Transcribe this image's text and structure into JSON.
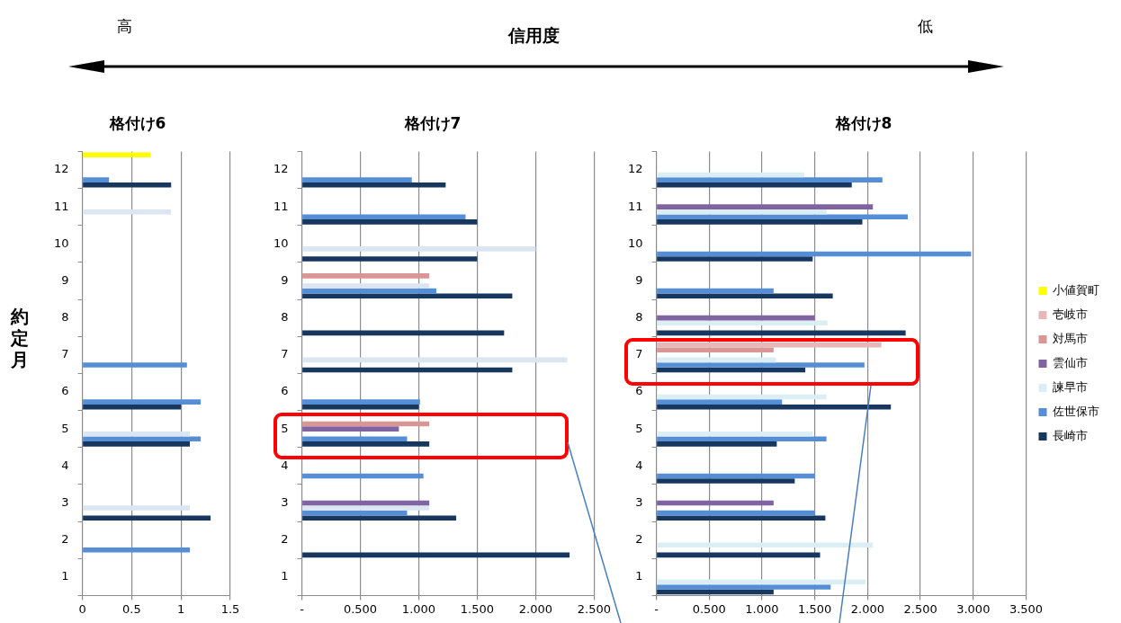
{
  "chart_data": [
    {
      "type": "other",
      "title": "信用度",
      "annotations": [
        "高",
        "低"
      ]
    },
    {
      "type": "bar",
      "title": "格付け6",
      "ylabel": "約定月",
      "orientation": "horizontal",
      "grid": "x",
      "categories": [
        "12",
        "11",
        "10",
        "9",
        "8",
        "7",
        "6",
        "5",
        "4",
        "3",
        "2",
        "1"
      ],
      "xlim": [
        0,
        1.5
      ],
      "xticks": [
        0,
        0.5,
        1,
        1.5
      ],
      "series": [
        {
          "color": "#ffff00",
          "values": [
            0.69,
            null,
            null,
            null,
            null,
            null,
            null,
            null,
            null,
            null,
            null,
            null
          ]
        },
        {
          "color": "#e6b9b8",
          "values": [
            null,
            null,
            null,
            null,
            null,
            null,
            null,
            null,
            null,
            null,
            null,
            null
          ]
        },
        {
          "color": "#d99694",
          "values": [
            null,
            null,
            null,
            null,
            null,
            null,
            null,
            null,
            null,
            null,
            null,
            null
          ]
        },
        {
          "color": "#8064a2",
          "values": [
            null,
            null,
            null,
            null,
            null,
            null,
            null,
            null,
            null,
            null,
            null,
            null
          ]
        },
        {
          "color": "#dce6f2",
          "values": [
            null,
            0.9,
            null,
            null,
            null,
            null,
            null,
            1.09,
            null,
            1.09,
            null,
            null
          ]
        },
        {
          "color": "#558ed5",
          "values": [
            0.27,
            null,
            null,
            null,
            null,
            1.06,
            1.2,
            1.2,
            null,
            null,
            1.09,
            null
          ]
        },
        {
          "color": "#17375e",
          "values": [
            0.9,
            null,
            null,
            null,
            null,
            null,
            1.0,
            1.09,
            null,
            1.3,
            null,
            null
          ]
        }
      ]
    },
    {
      "type": "bar",
      "title": "格付け7",
      "orientation": "horizontal",
      "grid": "x",
      "categories": [
        "12",
        "11",
        "10",
        "9",
        "8",
        "7",
        "6",
        "5",
        "4",
        "3",
        "2",
        "1"
      ],
      "xlim": [
        0,
        2.5
      ],
      "xticks": [
        {
          "value": 0,
          "label": "-"
        },
        {
          "value": 0.5,
          "label": "0.500"
        },
        {
          "value": 1,
          "label": "1.000"
        },
        {
          "value": 1.5,
          "label": "1.500"
        },
        {
          "value": 2,
          "label": "2.000"
        },
        {
          "value": 2.5,
          "label": "2.500"
        }
      ],
      "series": [
        {
          "color": "#ffff00",
          "values": [
            null,
            null,
            null,
            null,
            null,
            null,
            null,
            null,
            null,
            null,
            null,
            null
          ]
        },
        {
          "color": "#e6b9b8",
          "values": [
            null,
            null,
            null,
            null,
            null,
            null,
            null,
            null,
            null,
            null,
            null,
            null
          ]
        },
        {
          "color": "#d99694",
          "values": [
            null,
            null,
            null,
            1.09,
            null,
            null,
            null,
            1.09,
            null,
            null,
            null,
            null
          ]
        },
        {
          "color": "#8064a2",
          "values": [
            null,
            null,
            null,
            null,
            null,
            null,
            null,
            0.83,
            null,
            1.09,
            null,
            null
          ]
        },
        {
          "color": "#dce6f2",
          "values": [
            null,
            null,
            2.0,
            1.09,
            null,
            2.27,
            null,
            null,
            null,
            1.09,
            null,
            null
          ]
        },
        {
          "color": "#558ed5",
          "values": [
            0.94,
            1.4,
            null,
            1.15,
            null,
            null,
            1.01,
            0.9,
            1.04,
            0.9,
            null,
            null
          ]
        },
        {
          "color": "#17375e",
          "values": [
            1.23,
            1.5,
            1.5,
            1.8,
            1.73,
            1.8,
            1.0,
            1.09,
            null,
            1.32,
            2.29,
            null
          ]
        }
      ]
    },
    {
      "type": "bar",
      "title": "格付け8",
      "orientation": "horizontal",
      "grid": "x",
      "legend": "right",
      "categories": [
        "12",
        "11",
        "10",
        "9",
        "8",
        "7",
        "6",
        "5",
        "4",
        "3",
        "2",
        "1"
      ],
      "xlim": [
        0,
        3.5
      ],
      "xticks": [
        {
          "value": 0,
          "label": "-"
        },
        {
          "value": 0.5,
          "label": "0.500"
        },
        {
          "value": 1,
          "label": "1.000"
        },
        {
          "value": 1.5,
          "label": "1.500"
        },
        {
          "value": 2,
          "label": "2.000"
        },
        {
          "value": 2.5,
          "label": "2.500"
        },
        {
          "value": 3,
          "label": "3.000"
        },
        {
          "value": 3.5,
          "label": "3.500"
        }
      ],
      "series": [
        {
          "name": "小値賀町",
          "color": "#ffff00",
          "values": [
            null,
            null,
            null,
            null,
            null,
            null,
            null,
            null,
            null,
            null,
            null,
            null
          ]
        },
        {
          "name": "壱岐市",
          "color": "#e6b9b8",
          "values": [
            null,
            null,
            null,
            null,
            null,
            2.13,
            null,
            null,
            null,
            null,
            null,
            null
          ]
        },
        {
          "name": "対馬市",
          "color": "#d99694",
          "values": [
            null,
            null,
            null,
            null,
            null,
            1.11,
            null,
            null,
            null,
            null,
            null,
            null
          ]
        },
        {
          "name": "雲仙市",
          "color": "#8064a2",
          "values": [
            null,
            2.05,
            null,
            null,
            1.5,
            null,
            null,
            null,
            null,
            1.11,
            null,
            null
          ]
        },
        {
          "name": "諫早市",
          "color": "#dbeef4",
          "values": [
            1.4,
            1.61,
            null,
            null,
            1.62,
            1.13,
            1.61,
            1.48,
            null,
            null,
            2.05,
            1.98
          ]
        },
        {
          "name": "佐世保市",
          "color": "#558ed5",
          "values": [
            2.14,
            2.38,
            2.98,
            1.11,
            null,
            1.97,
            1.19,
            1.61,
            1.5,
            1.5,
            null,
            1.65
          ]
        },
        {
          "name": "長崎市",
          "color": "#17375e",
          "values": [
            1.85,
            1.95,
            1.48,
            1.67,
            2.36,
            1.41,
            2.22,
            1.14,
            1.31,
            1.6,
            1.55,
            1.11
          ]
        }
      ]
    }
  ]
}
